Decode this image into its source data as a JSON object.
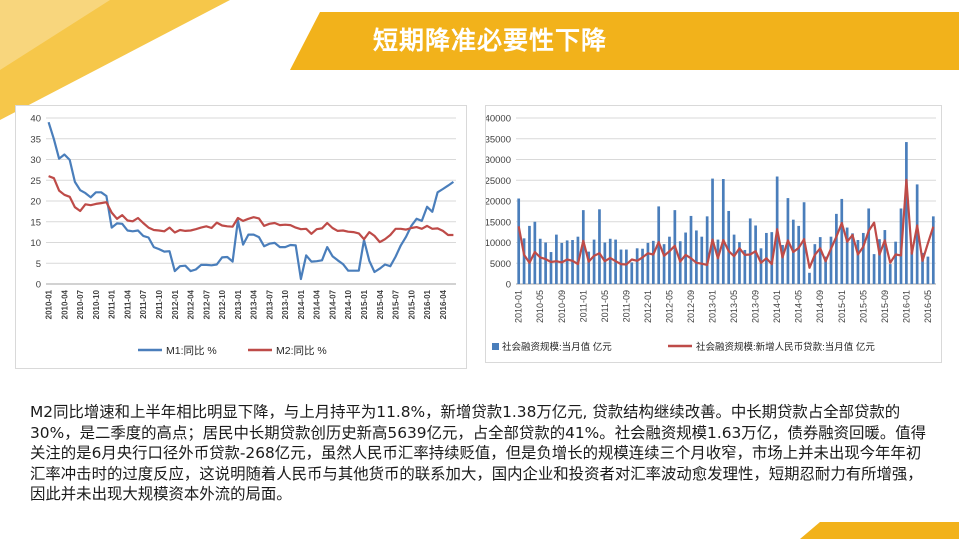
{
  "title": "短期降准必要性下降",
  "paragraph": "M2同比增速和上半年相比明显下降，与上月持平为11.8%，新增贷款1.38万亿元, 贷款结构继续改善。中长期贷款占全部贷款的30%，是二季度的高点；居民中长期贷款创历史新高5639亿元，占全部贷款的41%。社会融资规模1.63万亿，债券融资回暖。值得关注的是6月央行口径外币贷款-268亿元，虽然人民币汇率持续贬值，但是负增长的规模连续三个月收窄，市场上并未出现今年年初汇率冲击时的过度反应，这说明随着人民币与其他货币的联系加大，国内企业和投资者对汇率波动愈发理性，短期忍耐力有所增强，因此并未出现大规模资本外流的局面。",
  "colors": {
    "m1": "#4a7ebb",
    "m2": "#be4b48",
    "bar": "#4a7ebb",
    "accent": "#f2b21b"
  },
  "chart_data": [
    {
      "type": "line",
      "title": "",
      "ylim": [
        0,
        40
      ],
      "yticks": [
        0,
        5,
        10,
        15,
        20,
        25,
        30,
        35,
        40
      ],
      "xtick_labels": [
        "2010-01",
        "2010-04",
        "2010-07",
        "2010-10",
        "2011-01",
        "2011-04",
        "2011-07",
        "2011-10",
        "2012-01",
        "2012-04",
        "2012-07",
        "2012-10",
        "2013-01",
        "2013-04",
        "2013-07",
        "2013-10",
        "2014-01",
        "2014-04",
        "2014-07",
        "2014-10",
        "2015-01",
        "2015-04",
        "2015-07",
        "2015-10",
        "2016-01",
        "2016-04"
      ],
      "legend_position": "bottom",
      "series": [
        {
          "name": "M1:同比 %",
          "color": "#4a7ebb",
          "values": [
            39,
            34.9,
            30.2,
            31.2,
            29.9,
            24.6,
            22.6,
            21.9,
            20.9,
            22.1,
            22.1,
            21.2,
            13.6,
            14.6,
            14.5,
            12.9,
            12.7,
            12.9,
            11.6,
            11.2,
            8.9,
            8.4,
            7.8,
            7.9,
            3.1,
            4.3,
            4.4,
            3.1,
            3.5,
            4.6,
            4.6,
            4.5,
            4.7,
            6.4,
            6.5,
            5.4,
            15.3,
            9.5,
            11.9,
            11.9,
            11.3,
            9.1,
            9.7,
            9.9,
            8.9,
            8.9,
            9.4,
            9.3,
            1.2,
            6.9,
            5.4,
            5.5,
            5.7,
            8.9,
            6.7,
            5.7,
            4.8,
            3.2,
            3.2,
            3.2,
            10.6,
            5.6,
            2.9,
            3.7,
            4.7,
            4.3,
            6.6,
            9.3,
            11.4,
            14,
            15.7,
            15.2,
            18.6,
            17.4,
            22.1,
            22.9,
            23.7,
            24.6
          ]
        },
        {
          "name": "M2:同比 %",
          "color": "#be4b48",
          "values": [
            26,
            25.5,
            22.5,
            21.5,
            21,
            18.5,
            17.6,
            19.2,
            19,
            19.3,
            19.5,
            19.7,
            17.2,
            15.7,
            16.6,
            15.3,
            15.1,
            15.9,
            14.7,
            13.6,
            13,
            12.9,
            12.7,
            13.6,
            12.4,
            13,
            12.8,
            12.9,
            13.2,
            13.6,
            13.9,
            13.5,
            14.8,
            14.1,
            13.9,
            13.8,
            15.9,
            15.2,
            15.7,
            16.1,
            15.8,
            14,
            14.5,
            14.7,
            14.2,
            14.3,
            14.2,
            13.6,
            13.2,
            13.3,
            12.1,
            13.2,
            13.4,
            14.7,
            13.5,
            12.8,
            12.9,
            12.6,
            12.5,
            12.2,
            10.8,
            12.5,
            11.6,
            10.1,
            10.8,
            11.8,
            13.3,
            13.3,
            13.1,
            13.5,
            13.7,
            13.3,
            14,
            13.3,
            13.4,
            12.8,
            11.8,
            11.8
          ]
        }
      ]
    },
    {
      "type": "bar",
      "title": "",
      "ylim": [
        0,
        40000
      ],
      "yticks": [
        0,
        5000,
        10000,
        15000,
        20000,
        25000,
        30000,
        35000,
        40000
      ],
      "xtick_labels": [
        "2010-01",
        "2010-05",
        "2010-09",
        "2011-01",
        "2011-05",
        "2011-09",
        "2012-01",
        "2012-05",
        "2012-09",
        "2013-01",
        "2013-05",
        "2013-09",
        "2014-01",
        "2014-05",
        "2014-09",
        "2015-01",
        "2015-05",
        "2015-09",
        "2016-01",
        "2016-05"
      ],
      "legend_position": "bottom",
      "series": [
        {
          "name": "社会融资规模:当月值 亿元",
          "color": "#4a7ebb",
          "kind": "bar",
          "values": [
            20600,
            11000,
            14000,
            15000,
            10900,
            10000,
            7700,
            11900,
            9900,
            10500,
            10600,
            11400,
            17800,
            7800,
            10700,
            18000,
            10000,
            10900,
            10700,
            8300,
            8300,
            5200,
            8600,
            8500,
            9900,
            10400,
            18700,
            9600,
            11400,
            17800,
            10300,
            12400,
            16400,
            12900,
            11400,
            16300,
            25400,
            10700,
            25300,
            17600,
            11900,
            10100,
            8200,
            15800,
            14100,
            8600,
            12300,
            12500,
            25900,
            9400,
            20700,
            15500,
            14000,
            19700,
            2700,
            9600,
            11300,
            6600,
            11400,
            16900,
            20500,
            13600,
            12200,
            10600,
            12300,
            18200,
            7200,
            10800,
            13000,
            4800,
            10200,
            18200,
            34200,
            7800,
            24000,
            7500,
            6600,
            16300
          ]
        },
        {
          "name": "社会融资规模:新增人民币贷款:当月值 亿元",
          "color": "#be4b48",
          "kind": "line",
          "values": [
            13900,
            7000,
            5100,
            7700,
            6400,
            6000,
            5300,
            5500,
            5200,
            5900,
            5600,
            4800,
            10400,
            5400,
            6800,
            7400,
            5500,
            6300,
            5500,
            4800,
            4700,
            5900,
            5600,
            6400,
            7400,
            7100,
            10100,
            6800,
            7900,
            9200,
            5400,
            7000,
            6200,
            5100,
            4900,
            4600,
            10700,
            6200,
            10600,
            7900,
            6700,
            8600,
            7000,
            7100,
            7900,
            5100,
            6200,
            4800,
            13200,
            6400,
            10500,
            7700,
            8700,
            10800,
            3900,
            7000,
            8600,
            5500,
            8500,
            11400,
            14700,
            10200,
            11800,
            7100,
            9000,
            12800,
            14800,
            7100,
            10500,
            5100,
            7100,
            6900,
            25100,
            7300,
            14100,
            5600,
            9800,
            13800
          ]
        }
      ]
    }
  ]
}
